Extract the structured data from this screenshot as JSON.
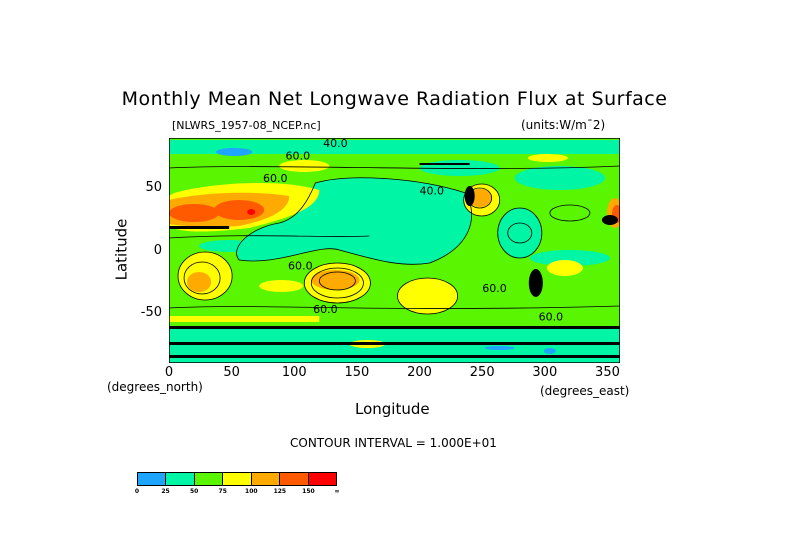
{
  "chart_data": {
    "type": "heatmap",
    "title": "Monthly Mean Net Longwave Radiation Flux at Surface",
    "subtitle_left": "[NLWRS_1957-08_NCEP.nc]",
    "subtitle_right": "(units:W/m¯2)",
    "xlabel": "Longitude",
    "ylabel": "Latitude",
    "x_units": "(degrees_east)",
    "y_units": "(degrees_north)",
    "xlim": [
      0,
      360
    ],
    "ylim": [
      -90,
      90
    ],
    "x_ticks": [
      0,
      50,
      100,
      150,
      200,
      250,
      300,
      350
    ],
    "y_ticks": [
      50,
      0,
      -50
    ],
    "contour_interval_text": "CONTOUR INTERVAL = 1.000E+01",
    "contour_labels": [
      {
        "text": "40.0",
        "lon": 123,
        "lat": 83
      },
      {
        "text": "60.0",
        "lon": 93,
        "lat": 73
      },
      {
        "text": "60.0",
        "lon": 75,
        "lat": 55
      },
      {
        "text": "40.0",
        "lon": 200,
        "lat": 45
      },
      {
        "text": "60.0",
        "lon": 95,
        "lat": -15
      },
      {
        "text": "60.0",
        "lon": 250,
        "lat": -33
      },
      {
        "text": "60.0",
        "lon": 115,
        "lat": -50
      },
      {
        "text": "60.0",
        "lon": 295,
        "lat": -56
      }
    ],
    "colorbar": {
      "labels": [
        "0",
        "25",
        "50",
        "75",
        "100",
        "125",
        "150",
        "∞"
      ],
      "colors": [
        "#1ea5ff",
        "#00f5a5",
        "#5af500",
        "#ffff00",
        "#ffaa00",
        "#ff5a00",
        "#ff0000"
      ]
    }
  }
}
